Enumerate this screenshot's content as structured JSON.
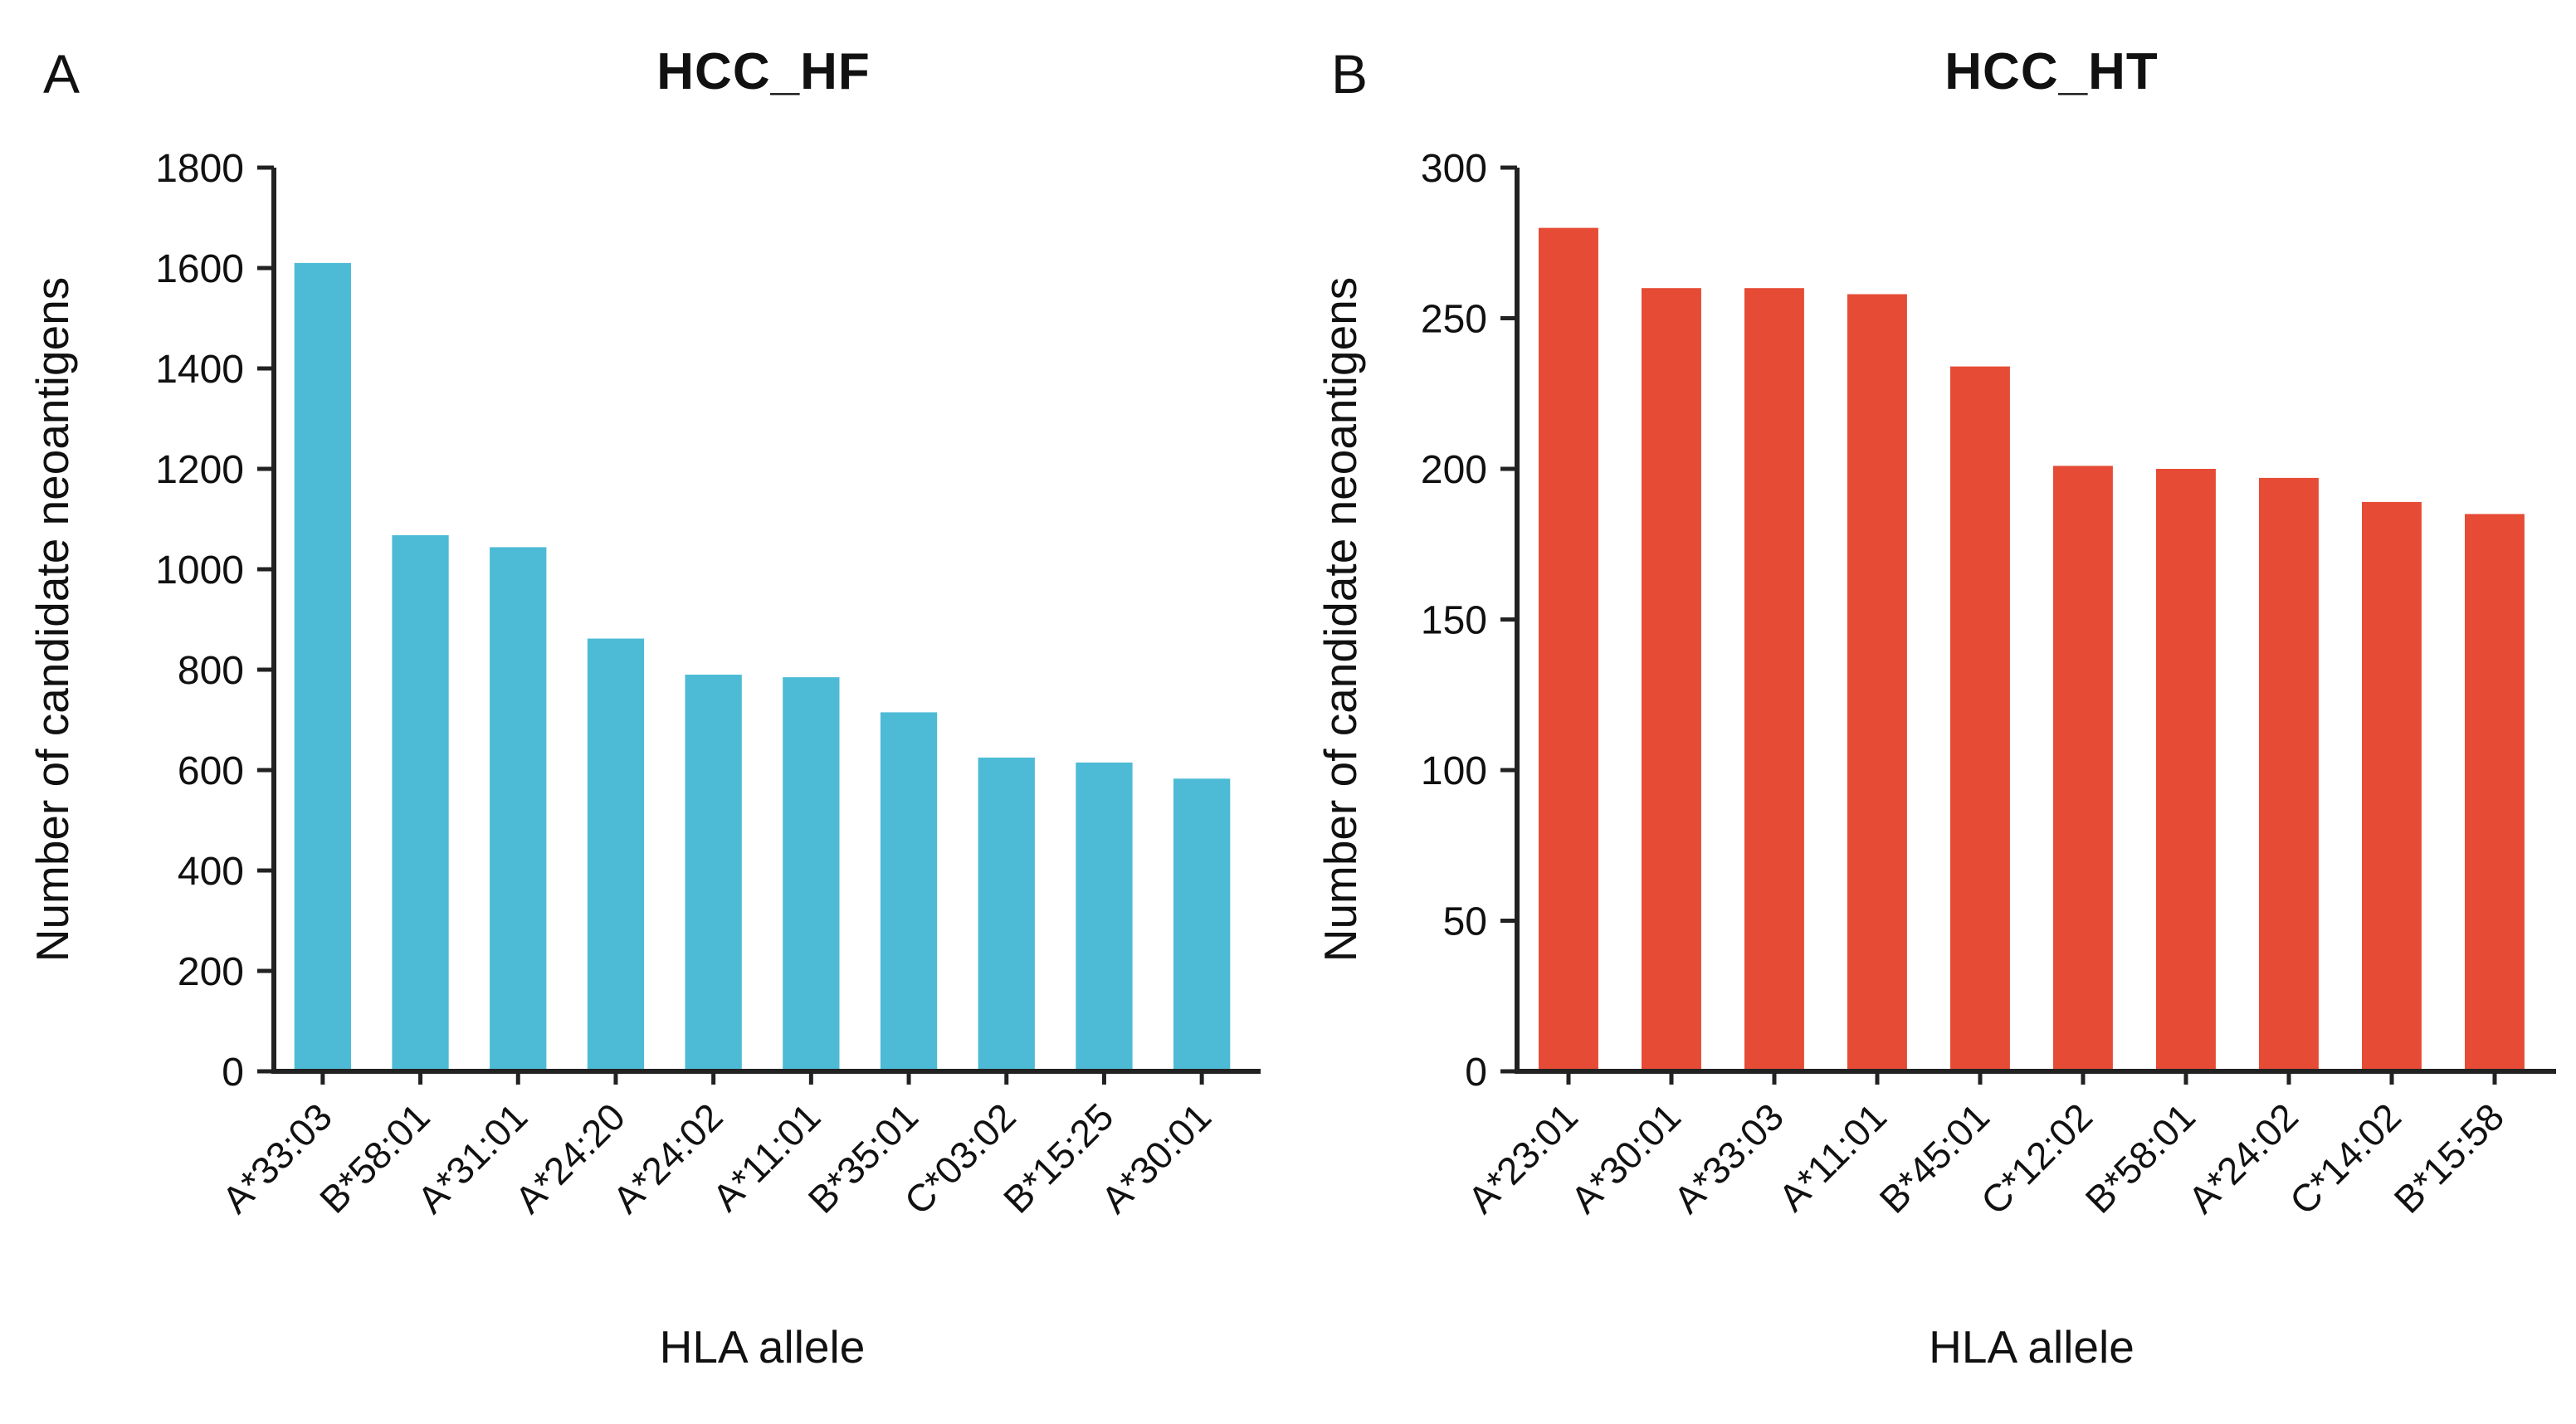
{
  "style": {
    "background_color": "#ffffff",
    "text_color": "#111111",
    "axis_color": "#222222"
  },
  "chart_data": [
    {
      "type": "bar",
      "panel_letter": "A",
      "title": "HCC_HF",
      "xlabel": "HLA allele",
      "ylabel": "Number of candidate neoantigens",
      "bar_color": "#4DBBD5",
      "ylim": [
        0,
        1800
      ],
      "ytick_interval": 200,
      "grid": false,
      "legend": null,
      "categories": [
        "A*33:03",
        "B*58:01",
        "A*31:01",
        "A*24:20",
        "A*24:02",
        "A*11:01",
        "B*35:01",
        "C*03:02",
        "B*15:25",
        "A*30:01"
      ],
      "values": [
        1610,
        1068,
        1044,
        862,
        790,
        785,
        715,
        625,
        615,
        583
      ]
    },
    {
      "type": "bar",
      "panel_letter": "B",
      "title": "HCC_HT",
      "xlabel": "HLA allele",
      "ylabel": "Number of candidate neoantigens",
      "bar_color": "#E64B35",
      "ylim": [
        0,
        300
      ],
      "ytick_interval": 50,
      "grid": false,
      "legend": null,
      "categories": [
        "A*23:01",
        "A*30:01",
        "A*33:03",
        "A*11:01",
        "B*45:01",
        "C*12:02",
        "B*58:01",
        "A*24:02",
        "C*14:02",
        "B*15:58"
      ],
      "values": [
        280,
        260,
        260,
        258,
        234,
        201,
        200,
        197,
        189,
        185
      ]
    }
  ]
}
